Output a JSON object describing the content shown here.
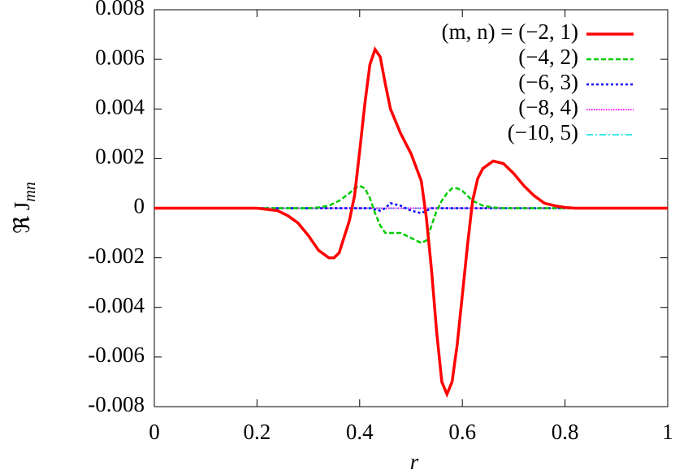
{
  "chart_data": {
    "type": "line",
    "xlabel": "r",
    "ylabel": "ℜ J",
    "ylabel_sub": "mn",
    "x": [
      0,
      0.1,
      0.2,
      0.22,
      0.24,
      0.26,
      0.28,
      0.3,
      0.32,
      0.34,
      0.35,
      0.36,
      0.38,
      0.39,
      0.4,
      0.41,
      0.42,
      0.43,
      0.44,
      0.45,
      0.46,
      0.48,
      0.5,
      0.52,
      0.53,
      0.54,
      0.55,
      0.56,
      0.57,
      0.58,
      0.59,
      0.6,
      0.61,
      0.62,
      0.63,
      0.64,
      0.66,
      0.68,
      0.7,
      0.72,
      0.74,
      0.76,
      0.78,
      0.8,
      0.82,
      0.9,
      1
    ],
    "series": [
      {
        "name": "(m, n) = (−2, 1)",
        "color": "#ff0000",
        "values": [
          0,
          0,
          0,
          -5e-05,
          -0.0001,
          -0.0003,
          -0.0006,
          -0.0011,
          -0.0017,
          -0.002,
          -0.002,
          -0.0018,
          -0.0005,
          0.0005,
          0.0023,
          0.0042,
          0.0058,
          0.0064,
          0.0061,
          0.005,
          0.004,
          0.003,
          0.0022,
          0.0011,
          -0.0004,
          -0.0025,
          -0.005,
          -0.007,
          -0.0075,
          -0.007,
          -0.0055,
          -0.0035,
          -0.0015,
          0.0003,
          0.0012,
          0.0016,
          0.0019,
          0.0018,
          0.0014,
          0.0009,
          0.0005,
          0.0002,
          0.0001,
          3e-05,
          0,
          0,
          0
        ]
      },
      {
        "name": "(−4, 2)",
        "color": "#00cc00",
        "values": [
          0,
          0,
          0,
          0,
          0,
          0,
          0,
          0,
          3e-05,
          0.0001,
          0.0002,
          0.0003,
          0.0006,
          0.0008,
          0.0009,
          0.0008,
          0.0004,
          -0.0002,
          -0.0007,
          -0.001,
          -0.001,
          -0.001,
          -0.0012,
          -0.0014,
          -0.0013,
          -0.0007,
          -0.0001,
          0.0003,
          0.0006,
          0.0008,
          0.0008,
          0.0007,
          0.0005,
          0.0003,
          0.0002,
          0.0001,
          3e-05,
          0,
          0,
          0,
          0,
          0,
          0,
          0,
          0,
          0,
          0
        ]
      },
      {
        "name": "(−6, 3)",
        "color": "#0000ff",
        "values": [
          0,
          0,
          0,
          0,
          0,
          0,
          0,
          0,
          0,
          0,
          0,
          0,
          0,
          0,
          0,
          0,
          0,
          -5e-05,
          -0.0001,
          0,
          0.0002,
          0.0001,
          -0.0001,
          -0.0002,
          -0.0001,
          0,
          0,
          0,
          0,
          0,
          0,
          0,
          0,
          0,
          0,
          0,
          0,
          0,
          0,
          0,
          0,
          0,
          0,
          0,
          0,
          0,
          0
        ]
      },
      {
        "name": "(−8, 4)",
        "color": "#ff00ff",
        "values": [
          0,
          0,
          0,
          0,
          0,
          0,
          0,
          0,
          0,
          0,
          0,
          0,
          0,
          0,
          0,
          0,
          0,
          0,
          0,
          0,
          0,
          0,
          0,
          0,
          0,
          0,
          0,
          0,
          0,
          0,
          0,
          0,
          0,
          0,
          0,
          0,
          0,
          0,
          0,
          0,
          0,
          0,
          0,
          0,
          0,
          0,
          0
        ]
      },
      {
        "name": "(−10, 5)",
        "color": "#00dddd",
        "values": [
          0,
          0,
          0,
          0,
          0,
          0,
          0,
          0,
          0,
          0,
          0,
          0,
          0,
          0,
          0,
          0,
          0,
          0,
          0,
          0,
          0,
          0,
          0,
          0,
          0,
          0,
          0,
          0,
          0,
          0,
          0,
          0,
          0,
          0,
          0,
          0,
          0,
          0,
          0,
          0,
          0,
          0,
          0,
          0,
          0,
          0,
          0
        ]
      }
    ],
    "dash": [
      "",
      "6 3",
      "3 3",
      "1.5 1.5",
      "8 3 2 3"
    ],
    "xlim": [
      0,
      1
    ],
    "xticks": [
      0,
      0.2,
      0.4,
      0.6,
      0.8,
      1
    ],
    "ylim": [
      -0.008,
      0.008
    ],
    "yticks": [
      -0.008,
      -0.006,
      -0.004,
      -0.002,
      0,
      0.002,
      0.004,
      0.006,
      0.008
    ],
    "legend": "top-right"
  }
}
